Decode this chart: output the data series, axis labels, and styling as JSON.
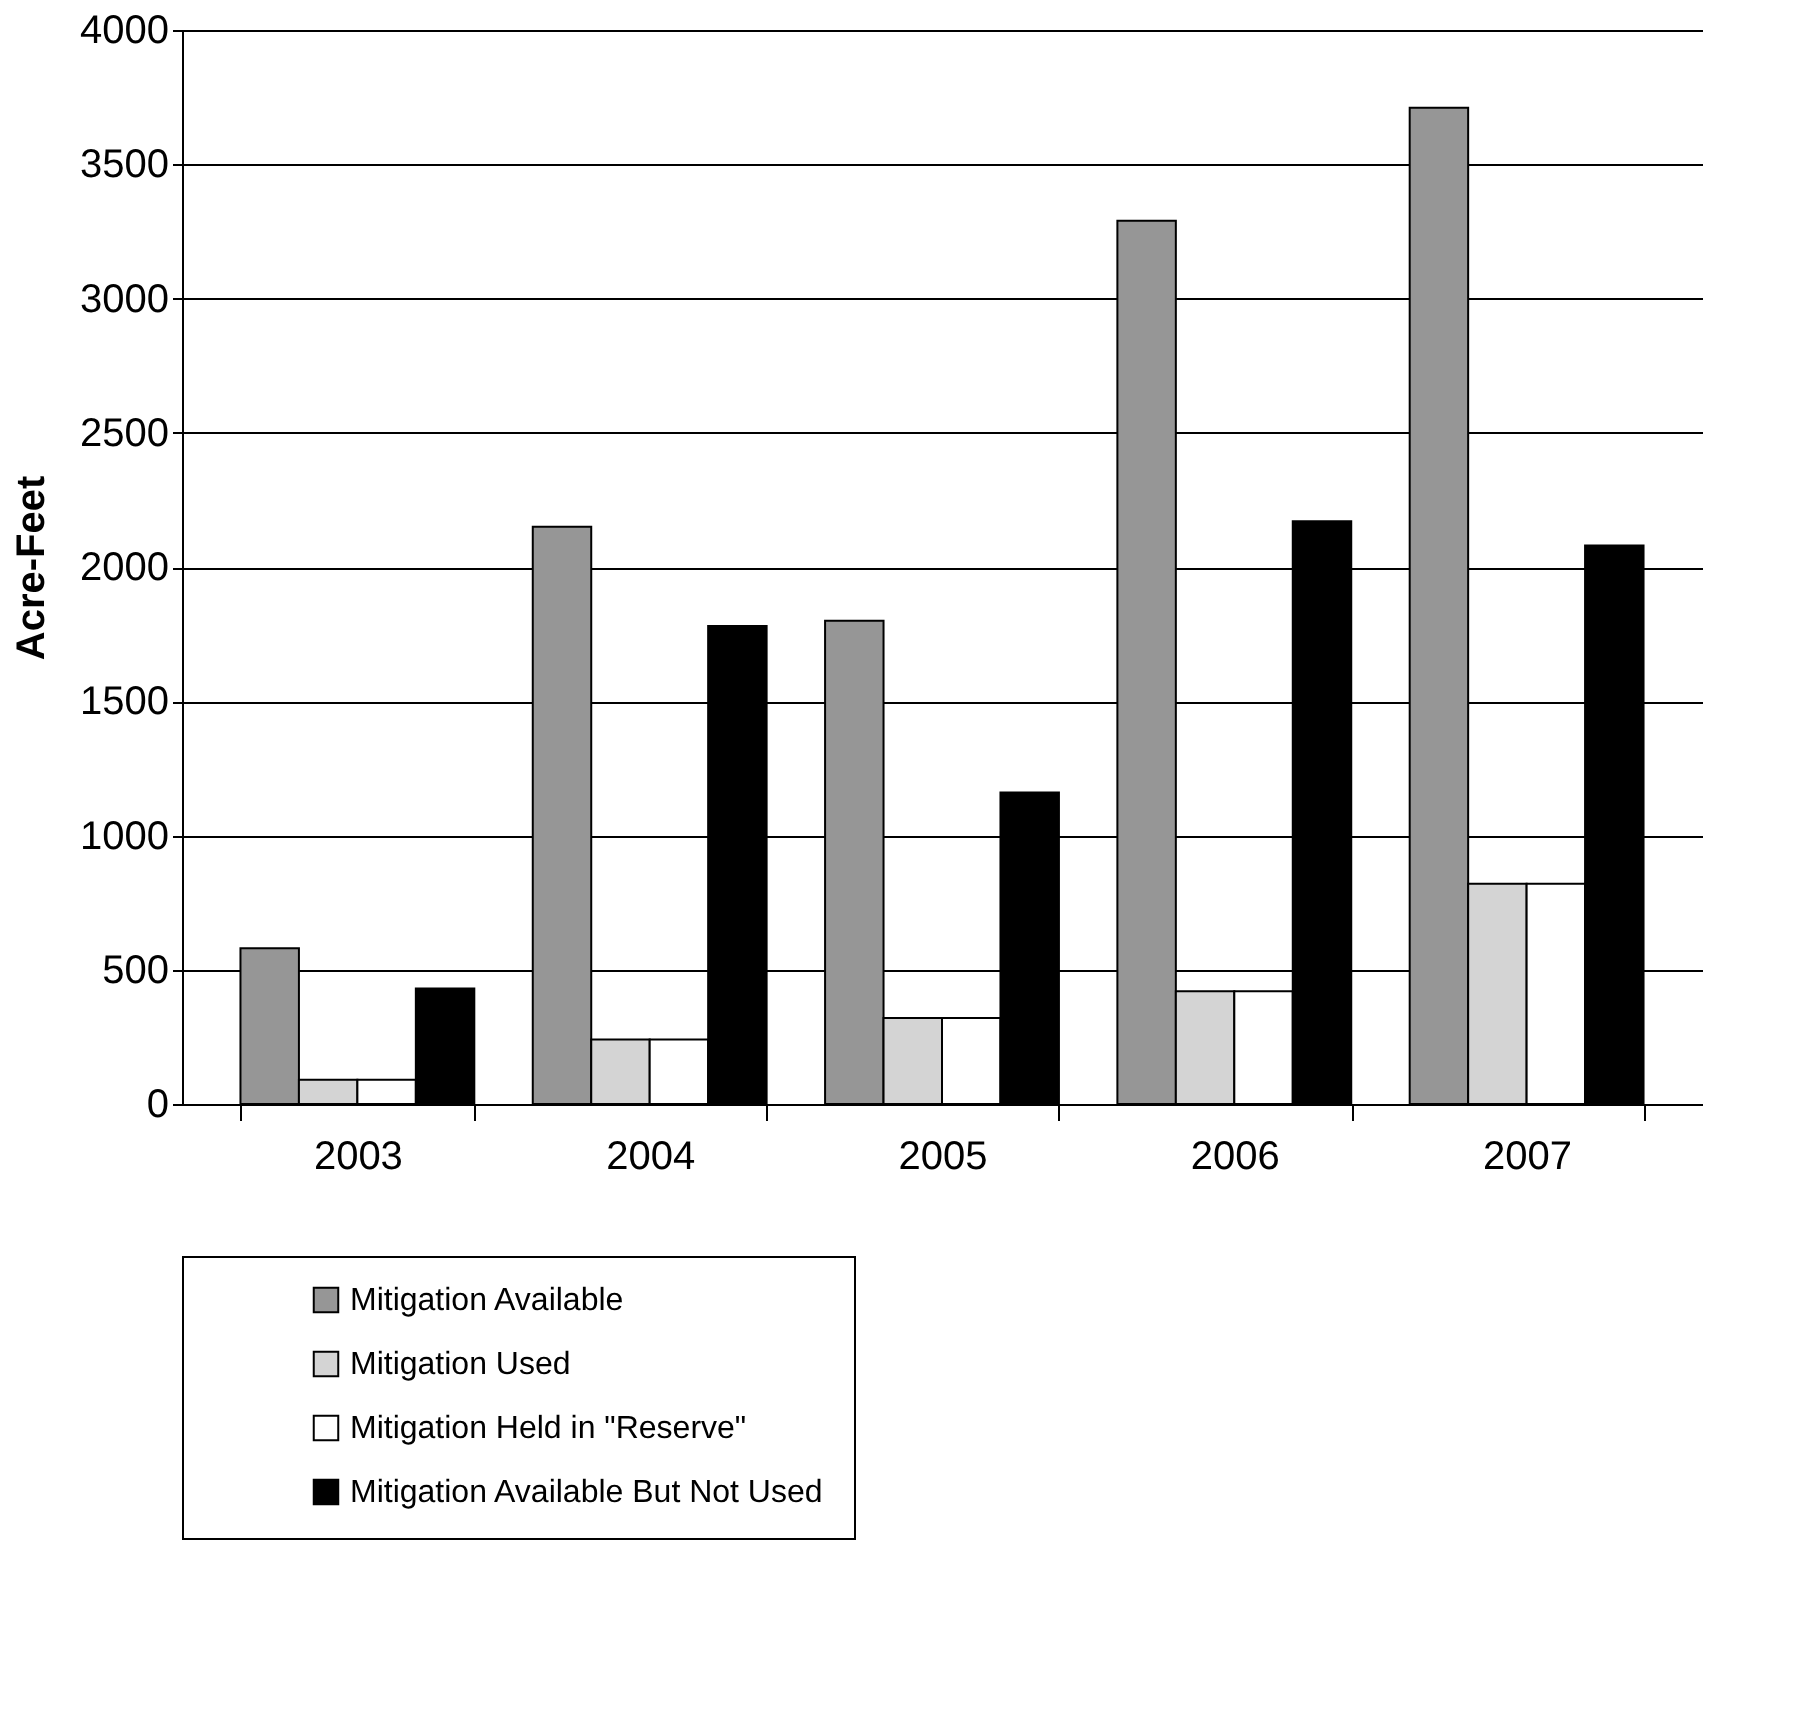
{
  "chart_data": {
    "type": "bar",
    "ylabel": "Acre-Feet",
    "categories": [
      "2003",
      "2004",
      "2005",
      "2006",
      "2007"
    ],
    "series": [
      {
        "name": "Mitigation Available",
        "color": "#969696",
        "values": [
          580,
          2150,
          1800,
          3290,
          3710
        ]
      },
      {
        "name": "Mitigation Used",
        "color": "#d4d4d4",
        "values": [
          90,
          240,
          320,
          420,
          820
        ]
      },
      {
        "name": "Mitigation Held in \"Reserve\"",
        "color": "#ffffff",
        "values": [
          90,
          240,
          320,
          420,
          820
        ]
      },
      {
        "name": "Mitigation Available But Not Used",
        "color": "#000000",
        "values": [
          430,
          1780,
          1160,
          2170,
          2080
        ]
      }
    ],
    "ylim": [
      0,
      4000
    ],
    "yticks": [
      0,
      500,
      1000,
      1500,
      2000,
      2500,
      3000,
      3500,
      4000
    ],
    "grid": "y",
    "legend": "bottom"
  }
}
